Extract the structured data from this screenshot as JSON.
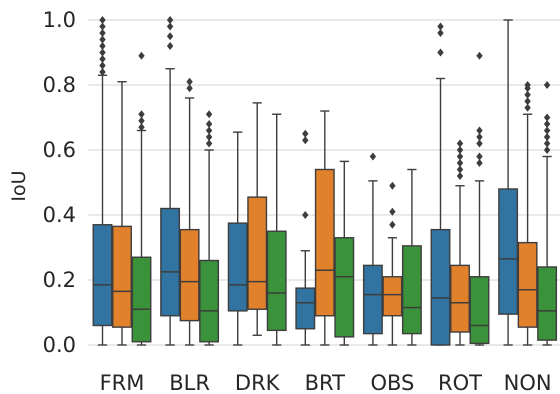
{
  "chart_data": {
    "type": "box",
    "ylabel": "IoU",
    "xlabel": "",
    "ylim": [
      -0.02,
      1.04
    ],
    "yticks": [
      "0.0",
      "0.2",
      "0.4",
      "0.6",
      "0.8",
      "1.0"
    ],
    "ytick_values": [
      0.0,
      0.2,
      0.4,
      0.6,
      0.8,
      1.0
    ],
    "grid": "horizontal",
    "series_colors": [
      "#3274a1",
      "#e1812c",
      "#3a923a"
    ],
    "categories": [
      "FRM",
      "BLR",
      "DRK",
      "BRT",
      "OBS",
      "ROT",
      "NON"
    ],
    "boxes": [
      [
        {
          "whislo": 0.0,
          "q1": 0.06,
          "med": 0.185,
          "q3": 0.37,
          "whishi": 0.83,
          "fliers": [
            0.84,
            0.86,
            0.88,
            0.9,
            0.92,
            0.94,
            0.96,
            0.98,
            1.0
          ]
        },
        {
          "whislo": 0.0,
          "q1": 0.055,
          "med": 0.165,
          "q3": 0.365,
          "whishi": 0.81,
          "fliers": []
        },
        {
          "whislo": 0.0,
          "q1": 0.01,
          "med": 0.11,
          "q3": 0.27,
          "whishi": 0.66,
          "fliers": [
            0.67,
            0.69,
            0.71,
            0.89
          ]
        }
      ],
      [
        {
          "whislo": 0.0,
          "q1": 0.09,
          "med": 0.225,
          "q3": 0.42,
          "whishi": 0.85,
          "fliers": [
            0.92,
            0.95,
            0.98,
            1.0
          ]
        },
        {
          "whislo": 0.0,
          "q1": 0.075,
          "med": 0.195,
          "q3": 0.355,
          "whishi": 0.76,
          "fliers": [
            0.79,
            0.81
          ]
        },
        {
          "whislo": 0.0,
          "q1": 0.01,
          "med": 0.105,
          "q3": 0.26,
          "whishi": 0.6,
          "fliers": [
            0.62,
            0.64,
            0.66,
            0.68,
            0.71
          ]
        }
      ],
      [
        {
          "whislo": 0.0,
          "q1": 0.105,
          "med": 0.185,
          "q3": 0.375,
          "whishi": 0.655,
          "fliers": []
        },
        {
          "whislo": 0.03,
          "q1": 0.11,
          "med": 0.195,
          "q3": 0.455,
          "whishi": 0.745,
          "fliers": []
        },
        {
          "whislo": 0.0,
          "q1": 0.045,
          "med": 0.16,
          "q3": 0.35,
          "whishi": 0.71,
          "fliers": []
        }
      ],
      [
        {
          "whislo": 0.0,
          "q1": 0.05,
          "med": 0.13,
          "q3": 0.175,
          "whishi": 0.29,
          "fliers": [
            0.4,
            0.63,
            0.65
          ]
        },
        {
          "whislo": 0.0,
          "q1": 0.09,
          "med": 0.23,
          "q3": 0.54,
          "whishi": 0.72,
          "fliers": []
        },
        {
          "whislo": 0.0,
          "q1": 0.025,
          "med": 0.21,
          "q3": 0.33,
          "whishi": 0.565,
          "fliers": []
        }
      ],
      [
        {
          "whislo": 0.0,
          "q1": 0.035,
          "med": 0.155,
          "q3": 0.245,
          "whishi": 0.505,
          "fliers": [
            0.58
          ]
        },
        {
          "whislo": 0.0,
          "q1": 0.09,
          "med": 0.155,
          "q3": 0.21,
          "whishi": 0.33,
          "fliers": [
            0.37,
            0.41,
            0.49
          ]
        },
        {
          "whislo": 0.0,
          "q1": 0.035,
          "med": 0.115,
          "q3": 0.305,
          "whishi": 0.54,
          "fliers": []
        }
      ],
      [
        {
          "whislo": 0.0,
          "q1": 0.0,
          "med": 0.145,
          "q3": 0.355,
          "whishi": 0.82,
          "fliers": [
            0.9,
            0.96,
            0.98
          ]
        },
        {
          "whislo": 0.0,
          "q1": 0.04,
          "med": 0.13,
          "q3": 0.245,
          "whishi": 0.49,
          "fliers": [
            0.52,
            0.54,
            0.56,
            0.58,
            0.6,
            0.62
          ]
        },
        {
          "whislo": 0.0,
          "q1": 0.005,
          "med": 0.06,
          "q3": 0.21,
          "whishi": 0.505,
          "fliers": [
            0.56,
            0.58,
            0.62,
            0.64,
            0.66,
            0.89
          ]
        }
      ],
      [
        {
          "whislo": 0.0,
          "q1": 0.095,
          "med": 0.265,
          "q3": 0.48,
          "whishi": 1.0,
          "fliers": []
        },
        {
          "whislo": 0.0,
          "q1": 0.055,
          "med": 0.17,
          "q3": 0.315,
          "whishi": 0.71,
          "fliers": [
            0.73,
            0.75,
            0.77,
            0.79,
            0.8
          ]
        },
        {
          "whislo": 0.0,
          "q1": 0.015,
          "med": 0.105,
          "q3": 0.24,
          "whishi": 0.58,
          "fliers": [
            0.6,
            0.62,
            0.64,
            0.66,
            0.68,
            0.7,
            0.8
          ]
        }
      ]
    ]
  }
}
